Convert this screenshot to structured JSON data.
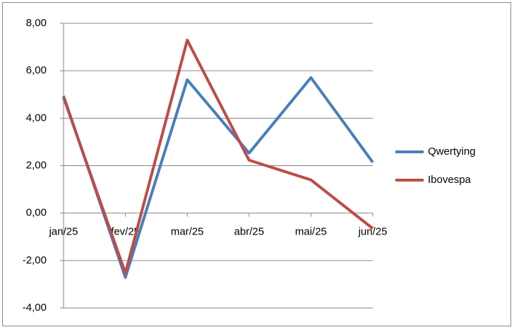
{
  "chart_data": {
    "type": "line",
    "categories": [
      "jan/25",
      "fev/25",
      "mar/25",
      "abr/25",
      "mai/25",
      "jun/25"
    ],
    "series": [
      {
        "name": "Qwertying",
        "color": "#4a7ebb",
        "values": [
          4.94,
          -2.71,
          5.62,
          2.53,
          5.71,
          2.14
        ]
      },
      {
        "name": "Ibovespa",
        "color": "#be4b48",
        "values": [
          4.88,
          -2.53,
          7.29,
          2.23,
          1.4,
          -0.65
        ]
      }
    ],
    "ylim": [
      -4,
      8
    ],
    "yticks": [
      {
        "value": -4,
        "label": "-4,00"
      },
      {
        "value": -2,
        "label": "-2,00"
      },
      {
        "value": 0,
        "label": "0,00"
      },
      {
        "value": 2,
        "label": "2,00"
      },
      {
        "value": 4,
        "label": "4,00"
      },
      {
        "value": 6,
        "label": "6,00"
      },
      {
        "value": 8,
        "label": "8,00"
      }
    ],
    "negative_tick_color": "#ff0000",
    "grid": true,
    "legend": "right"
  }
}
